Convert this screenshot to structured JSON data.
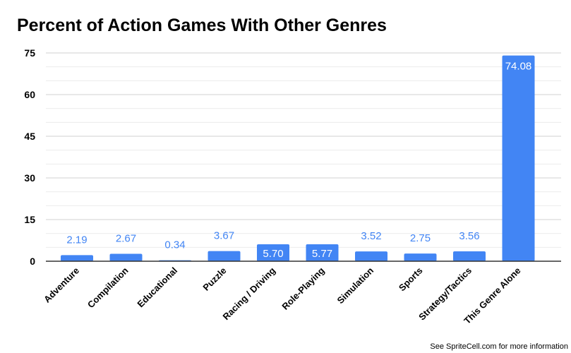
{
  "chart_data": {
    "type": "bar",
    "title": "Percent of Action Games With Other Genres",
    "categories": [
      "Adventure",
      "Compilation",
      "Educational",
      "Puzzle",
      "Racing / Driving",
      "Role-Playing",
      "Simulation",
      "Sports",
      "Strategy/Tactics",
      "This Genre Alone"
    ],
    "values": [
      2.19,
      2.67,
      0.34,
      3.67,
      5.7,
      5.77,
      3.52,
      2.75,
      3.56,
      74.08
    ],
    "data_labels": [
      "2.19",
      "2.67",
      "0.34",
      "3.67",
      "5.70",
      "5.77",
      "3.52",
      "2.75",
      "3.56",
      "74.08"
    ],
    "ylim": [
      0,
      75
    ],
    "yticks": [
      "0",
      "15",
      "30",
      "45",
      "60",
      "75"
    ],
    "xlabel": "",
    "ylabel": "",
    "grid": true,
    "legend": "none",
    "bar_color": "#4285f4",
    "label_color": "#4285f4"
  },
  "footer": "See SpriteCell.com for more information"
}
